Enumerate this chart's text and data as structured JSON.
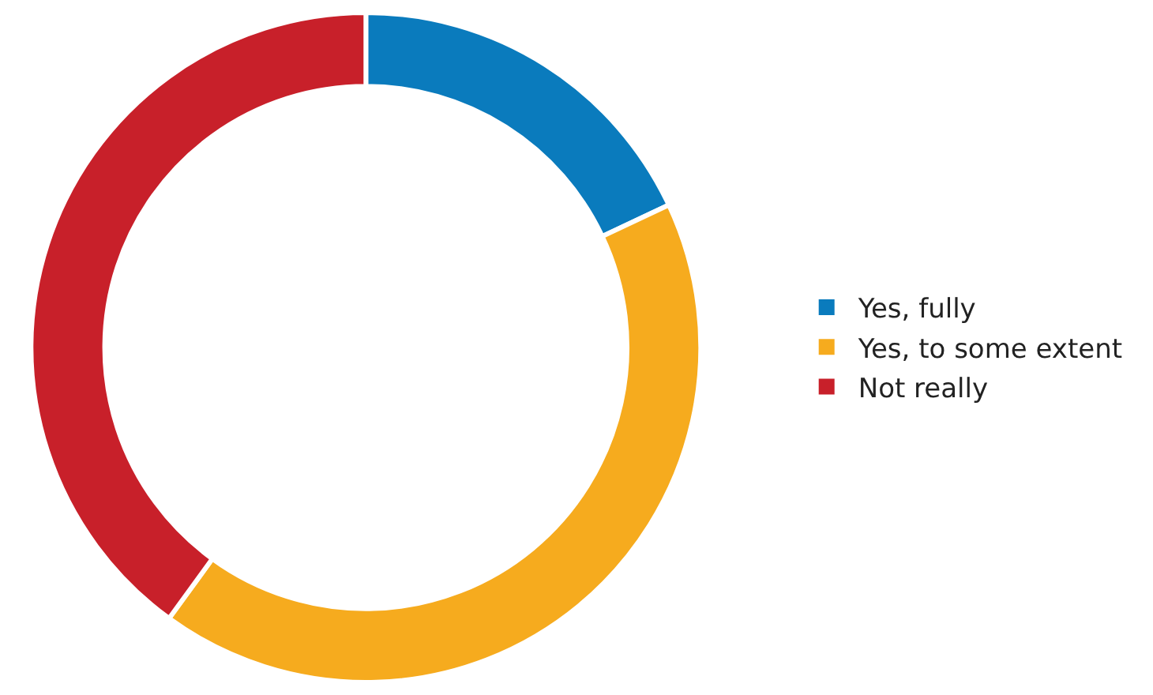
{
  "chart_data": {
    "type": "donut",
    "categories": [
      "Yes, fully",
      "Yes, to some extent",
      "Not really"
    ],
    "values": [
      18,
      42,
      40
    ],
    "colors": [
      "#0a7bbd",
      "#f6ab1e",
      "#c8202a"
    ],
    "legend": "right"
  }
}
